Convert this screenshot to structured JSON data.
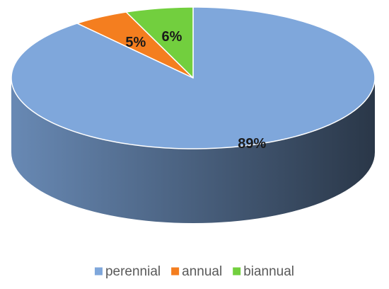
{
  "chart_data": {
    "type": "pie",
    "categories": [
      "perennial",
      "annual",
      "biannual"
    ],
    "values": [
      89,
      5,
      6
    ],
    "value_labels": [
      "89%",
      "5%",
      "6%"
    ],
    "colors": [
      "#7fa7db",
      "#f47e1f",
      "#72cf3e"
    ],
    "legend": "bottom"
  }
}
